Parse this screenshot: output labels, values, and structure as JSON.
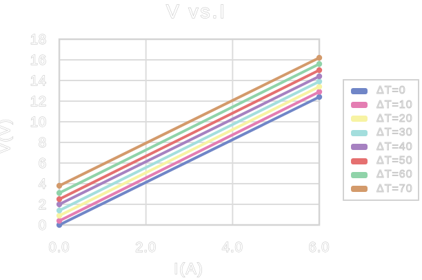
{
  "chart_data": {
    "type": "line",
    "title": "V vs.I",
    "xlabel": "I(A)",
    "ylabel": "V(V)",
    "xlim": [
      0,
      6
    ],
    "ylim": [
      0,
      18
    ],
    "grid": true,
    "legend_position": "right",
    "x_tick_labels": [
      "0.0",
      "2.0",
      "4.0",
      "6.0"
    ],
    "x_tick_values": [
      0,
      2,
      4,
      6
    ],
    "y_tick_values": [
      0,
      2,
      4,
      6,
      8,
      10,
      12,
      14,
      16,
      18
    ],
    "x_grid_values": [
      2,
      4
    ],
    "y_grid_values": [
      2,
      4,
      6,
      8,
      10,
      12,
      14,
      16
    ],
    "x": [
      0,
      6
    ],
    "series": [
      {
        "name": "ΔT=0",
        "color": "#7086c7",
        "values": [
          0.0,
          12.4
        ]
      },
      {
        "name": "ΔT=10",
        "color": "#e47db2",
        "values": [
          0.4,
          12.9
        ]
      },
      {
        "name": "ΔT=20",
        "color": "#f7f3a3",
        "values": [
          0.9,
          13.4
        ]
      },
      {
        "name": "ΔT=30",
        "color": "#a3dedd",
        "values": [
          1.4,
          13.9
        ]
      },
      {
        "name": "ΔT=40",
        "color": "#a681c1",
        "values": [
          2.0,
          14.4
        ]
      },
      {
        "name": "ΔT=50",
        "color": "#e57070",
        "values": [
          2.5,
          15.0
        ]
      },
      {
        "name": "ΔT=60",
        "color": "#90d3a9",
        "values": [
          3.1,
          15.6
        ]
      },
      {
        "name": "ΔT=70",
        "color": "#d39a6b",
        "values": [
          3.8,
          16.2
        ]
      }
    ],
    "colors": {
      "grid": "#dcdcdc",
      "frame": "#d4d4d4",
      "text_outline": "#c8c8c8",
      "background": "#ffffff"
    }
  }
}
